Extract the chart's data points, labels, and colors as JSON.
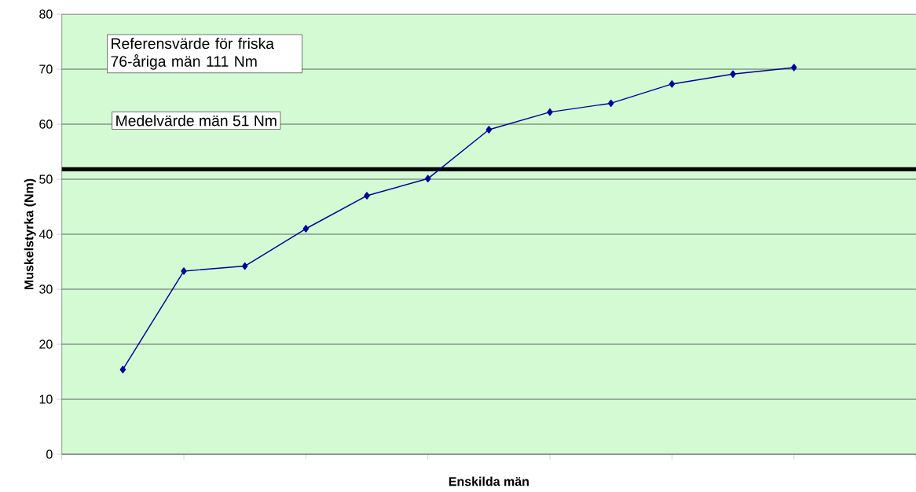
{
  "chart_data": {
    "type": "line",
    "xlabel": "Enskilda män",
    "ylabel": "Muskelstyrka (Nm)",
    "categories": [
      null,
      null,
      null,
      null,
      null,
      null,
      null,
      null,
      null,
      null,
      null,
      null
    ],
    "series": [
      {
        "color": "#000099",
        "values": [
          15.4,
          33.3,
          34.2,
          41.0,
          47.0,
          50.1,
          59.0,
          62.2,
          63.8,
          67.3,
          69.1,
          70.3
        ]
      }
    ],
    "ylim": [
      0,
      80
    ],
    "yticks": [
      0,
      10,
      20,
      30,
      40,
      50,
      60,
      70,
      80
    ],
    "tick_labels": "y",
    "grid": "y",
    "marker": "diamond",
    "line_style": "solid",
    "ref_lines": [
      {
        "axis": "y",
        "value": 51.8,
        "label": "Medelvärde män 51 Nm",
        "color": "#000000"
      }
    ],
    "annotations": [
      "Referensvärde för friska 76-åriga män 111 Nm"
    ]
  }
}
